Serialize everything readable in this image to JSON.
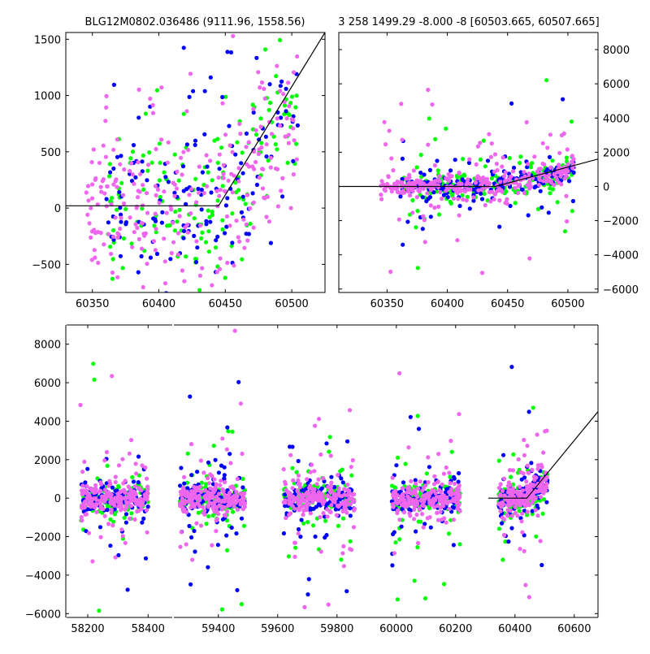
{
  "page": {
    "figure_title_left": "BLG12M0802.036486 (9111.96, 1558.56)",
    "figure_title_right": "3 258 1499.29 -8.000 -8 [60503.665, 60507.665]"
  },
  "colors": {
    "series_green": "#00ff00",
    "series_blue": "#0000ff",
    "series_magenta": "#ee66ee",
    "model_line": "#000000",
    "frame": "#000000",
    "background": "#ffffff"
  },
  "chart_data": [
    {
      "id": "zoom-left",
      "type": "scatter",
      "title": "BLG12M0802.036486 (9111.96, 1558.56)",
      "xlabel": "",
      "ylabel": "",
      "xlim": [
        60330,
        60525
      ],
      "ylim": [
        -750,
        1560
      ],
      "x_ticks": [
        60350,
        60400,
        60450,
        60500
      ],
      "y_ticks": [
        -500,
        0,
        500,
        1000,
        1500
      ],
      "y_axis_side": "left",
      "grid": false,
      "legend": "none",
      "model_line": {
        "x": [
          60330,
          60445,
          60525
        ],
        "y": [
          20,
          20,
          1560
        ]
      },
      "series": [
        {
          "color_key": "series_green",
          "x_range": [
            60360,
            60505
          ],
          "count": 160,
          "gen": "zoom",
          "seed": 11
        },
        {
          "color_key": "series_blue",
          "x_range": [
            60360,
            60505
          ],
          "count": 150,
          "gen": "zoom",
          "seed": 23
        },
        {
          "color_key": "series_magenta",
          "x_range": [
            60345,
            60505
          ],
          "count": 260,
          "gen": "zoom",
          "seed": 37
        }
      ]
    },
    {
      "id": "zoom-right",
      "type": "scatter",
      "title": "3 258 1499.29 -8.000 -8 [60503.665, 60507.665]",
      "xlabel": "",
      "ylabel": "",
      "xlim": [
        60310,
        60525
      ],
      "ylim": [
        -6200,
        9000
      ],
      "x_ticks": [
        60350,
        60400,
        60450,
        60500
      ],
      "y_ticks": [
        -6000,
        -4000,
        -2000,
        0,
        2000,
        4000,
        6000,
        8000
      ],
      "y_axis_side": "right",
      "grid": false,
      "legend": "none",
      "model_line": {
        "x": [
          60310,
          60440,
          60525
        ],
        "y": [
          0,
          0,
          1600
        ]
      },
      "series": [
        {
          "color_key": "series_green",
          "x_range": [
            60360,
            60505
          ],
          "count": 200,
          "gen": "base",
          "seed": 41
        },
        {
          "color_key": "series_blue",
          "x_range": [
            60360,
            60505
          ],
          "count": 200,
          "gen": "base",
          "seed": 53
        },
        {
          "color_key": "series_magenta",
          "x_range": [
            60345,
            60505
          ],
          "count": 320,
          "gen": "base",
          "seed": 67
        }
      ]
    },
    {
      "id": "full-baseline",
      "type": "scatter",
      "title": "",
      "xlabel": "",
      "ylabel": "",
      "x_segments": [
        {
          "xlim": [
            58130,
            58480
          ],
          "px_range": [
            82,
            212
          ]
        },
        {
          "xlim": [
            59250,
            60680
          ],
          "px_range": [
            214,
            736
          ]
        }
      ],
      "ylim": [
        -6200,
        9000
      ],
      "x_ticks": [
        58200,
        58400,
        59400,
        59600,
        59800,
        60000,
        60200,
        60400,
        60600
      ],
      "y_ticks": [
        -6000,
        -4000,
        -2000,
        0,
        2000,
        4000,
        6000,
        8000
      ],
      "y_axis_side": "left",
      "grid": false,
      "legend": "none",
      "model_line": {
        "x": [
          60310,
          60440,
          60680
        ],
        "y": [
          0,
          0,
          4500
        ]
      },
      "seasons": [
        [
          58175,
          58400
        ],
        [
          59270,
          59490
        ],
        [
          59620,
          59860
        ],
        [
          59985,
          60215
        ],
        [
          60345,
          60510
        ]
      ],
      "series": [
        {
          "color_key": "series_green",
          "count_per_season": 120,
          "gen": "base",
          "seed": 101
        },
        {
          "color_key": "series_blue",
          "count_per_season": 120,
          "gen": "base",
          "seed": 131
        },
        {
          "color_key": "series_magenta",
          "count_per_season": 200,
          "gen": "base",
          "seed": 157
        }
      ]
    }
  ]
}
